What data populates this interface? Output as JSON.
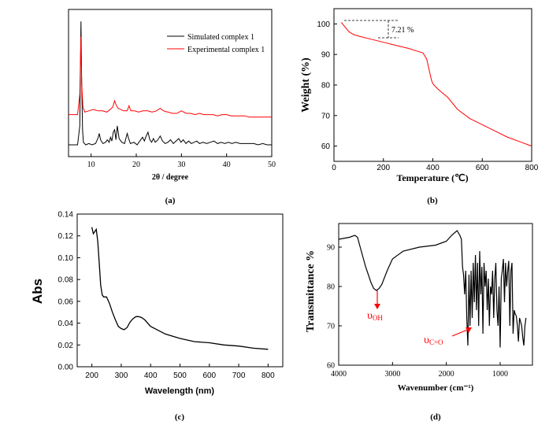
{
  "chart_data": [
    {
      "panel": "(a)",
      "type": "line",
      "xlabel": "2θ / degree",
      "ylabel": "",
      "xlim": [
        5,
        50
      ],
      "xticks": [
        10,
        20,
        30,
        40,
        50
      ],
      "yticks": [],
      "legend": "top-right",
      "series": [
        {
          "name": "Simulated complex 1",
          "color": "#000000",
          "x": [
            5.0,
            7.0,
            7.5,
            7.75,
            7.9,
            8.1,
            8.3,
            8.8,
            9.5,
            10.2,
            11.0,
            11.6,
            11.8,
            12.1,
            12.6,
            13.2,
            13.6,
            14.0,
            14.3,
            14.6,
            14.9,
            15.2,
            15.5,
            15.8,
            16.2,
            16.8,
            17.4,
            18.0,
            18.3,
            18.7,
            19.5,
            20.2,
            21.0,
            21.4,
            21.8,
            22.2,
            22.6,
            23.0,
            23.4,
            23.8,
            24.2,
            24.8,
            25.3,
            25.8,
            26.4,
            27.0,
            27.6,
            28.2,
            28.8,
            29.4,
            29.9,
            30.4,
            31.0,
            31.6,
            32.2,
            32.8,
            33.4,
            34.0,
            34.8,
            35.6,
            36.4,
            37.2,
            38.0,
            38.8,
            39.6,
            40.4,
            41.2,
            42.0,
            43.0,
            44.0,
            45.0,
            46.0,
            47.0,
            48.0,
            49.0,
            50.0
          ],
          "values": [
            0.0,
            0.0,
            0.15,
            0.98,
            0.55,
            0.12,
            0.02,
            0.0,
            0.01,
            0.0,
            0.01,
            0.06,
            0.09,
            0.04,
            0.01,
            0.02,
            0.04,
            0.02,
            0.06,
            0.03,
            0.1,
            0.12,
            0.04,
            0.15,
            0.05,
            0.02,
            0.01,
            0.09,
            0.05,
            0.01,
            0.02,
            0.0,
            0.04,
            0.06,
            0.03,
            0.07,
            0.1,
            0.04,
            0.02,
            0.05,
            0.02,
            0.04,
            0.07,
            0.03,
            0.01,
            0.02,
            0.04,
            0.01,
            0.03,
            0.05,
            0.02,
            0.04,
            0.01,
            0.03,
            0.01,
            0.02,
            0.03,
            0.01,
            0.02,
            0.01,
            0.02,
            0.03,
            0.01,
            0.02,
            0.01,
            0.02,
            0.01,
            0.02,
            0.01,
            0.01,
            0.01,
            0.01,
            0.0,
            0.01,
            0.0,
            0.0
          ]
        },
        {
          "name": "Experimental complex 1",
          "color": "#ff0000",
          "x": [
            5.0,
            7.0,
            7.5,
            7.75,
            7.9,
            8.2,
            8.6,
            9.5,
            10.5,
            11.5,
            12.5,
            13.5,
            14.2,
            14.8,
            15.2,
            15.6,
            16.0,
            16.6,
            17.2,
            18.0,
            18.4,
            18.8,
            19.6,
            20.5,
            21.5,
            22.5,
            23.5,
            24.5,
            25.3,
            26.0,
            27.0,
            28.0,
            29.0,
            30.0,
            31.0,
            32.0,
            33.0,
            34.0,
            35.0,
            36.0,
            37.0,
            38.0,
            39.0,
            40.0,
            41.0,
            42.0,
            43.0,
            44.0,
            45.0,
            46.0,
            47.0,
            48.0,
            49.0,
            50.0
          ],
          "values": [
            0.24,
            0.24,
            0.4,
            0.86,
            0.5,
            0.3,
            0.26,
            0.27,
            0.28,
            0.27,
            0.27,
            0.26,
            0.28,
            0.3,
            0.35,
            0.31,
            0.29,
            0.28,
            0.27,
            0.27,
            0.31,
            0.27,
            0.27,
            0.26,
            0.27,
            0.27,
            0.26,
            0.27,
            0.29,
            0.27,
            0.26,
            0.25,
            0.25,
            0.27,
            0.25,
            0.25,
            0.24,
            0.25,
            0.24,
            0.24,
            0.24,
            0.23,
            0.24,
            0.24,
            0.23,
            0.23,
            0.23,
            0.23,
            0.22,
            0.22,
            0.22,
            0.22,
            0.22,
            0.22
          ]
        }
      ]
    },
    {
      "panel": "(b)",
      "type": "line",
      "xlabel": "Temperature (℃)",
      "ylabel": "Weight (%)",
      "xlim": [
        0,
        800
      ],
      "ylim": [
        55,
        105
      ],
      "xticks": [
        0,
        200,
        400,
        600,
        800
      ],
      "yticks": [
        60,
        70,
        80,
        90,
        100
      ],
      "annotation": "7.21 %",
      "series": [
        {
          "name": "",
          "color": "#ff0000",
          "x": [
            30,
            45,
            60,
            80,
            100,
            150,
            200,
            250,
            300,
            340,
            360,
            375,
            385,
            395,
            400,
            410,
            430,
            460,
            500,
            550,
            600,
            650,
            700,
            750,
            800
          ],
          "values": [
            100.5,
            99.0,
            97.5,
            96.5,
            96.0,
            95.0,
            94.0,
            93.0,
            92.0,
            91.0,
            90.5,
            88.5,
            85.0,
            81.5,
            80.5,
            79.5,
            78.0,
            76.0,
            72.0,
            69.0,
            67.0,
            65.0,
            63.0,
            61.5,
            60.0
          ]
        }
      ]
    },
    {
      "panel": "(c)",
      "type": "line",
      "xlabel": "Wavelength (nm)",
      "ylabel": "Abs",
      "xlim": [
        150,
        850
      ],
      "ylim": [
        0.0,
        0.14
      ],
      "xticks": [
        200,
        300,
        400,
        500,
        600,
        700,
        800
      ],
      "yticks": [
        0.0,
        0.02,
        0.04,
        0.06,
        0.08,
        0.1,
        0.12,
        0.14
      ],
      "series": [
        {
          "name": "",
          "color": "#000000",
          "x": [
            200,
            205,
            210,
            215,
            220,
            225,
            230,
            235,
            240,
            250,
            260,
            270,
            280,
            290,
            300,
            310,
            320,
            330,
            340,
            350,
            360,
            370,
            380,
            400,
            450,
            500,
            550,
            600,
            650,
            700,
            750,
            800
          ],
          "values": [
            0.128,
            0.122,
            0.124,
            0.126,
            0.115,
            0.095,
            0.075,
            0.066,
            0.064,
            0.064,
            0.058,
            0.05,
            0.043,
            0.037,
            0.035,
            0.034,
            0.036,
            0.041,
            0.044,
            0.046,
            0.046,
            0.045,
            0.043,
            0.037,
            0.03,
            0.026,
            0.023,
            0.022,
            0.02,
            0.019,
            0.017,
            0.016
          ]
        }
      ]
    },
    {
      "panel": "(d)",
      "type": "line",
      "xlabel": "Wavenumber (cm⁻¹)",
      "ylabel": "Transmittance %",
      "xlim": [
        4000,
        400
      ],
      "ylim": [
        60,
        96
      ],
      "xticks": [
        4000,
        3000,
        2000,
        1000
      ],
      "yticks": [
        60,
        70,
        80,
        90
      ],
      "annotations": [
        {
          "text": "υOH",
          "x": 3300
        },
        {
          "text": "υC=O",
          "x": 1600
        }
      ],
      "series": [
        {
          "name": "",
          "color": "#000000",
          "x": [
            4000,
            3800,
            3700,
            3650,
            3600,
            3500,
            3400,
            3350,
            3300,
            3250,
            3200,
            3100,
            3000,
            2800,
            2500,
            2200,
            2000,
            1900,
            1800,
            1750,
            1720,
            1700,
            1680,
            1660,
            1640,
            1620,
            1600,
            1590,
            1580,
            1560,
            1540,
            1520,
            1500,
            1480,
            1460,
            1440,
            1420,
            1400,
            1380,
            1360,
            1340,
            1320,
            1300,
            1280,
            1260,
            1240,
            1220,
            1200,
            1180,
            1160,
            1140,
            1120,
            1100,
            1080,
            1060,
            1040,
            1020,
            1000,
            980,
            960,
            940,
            920,
            900,
            880,
            860,
            840,
            820,
            800,
            780,
            760,
            740,
            720,
            700,
            680,
            660,
            640,
            620,
            600,
            580,
            560,
            540,
            520
          ],
          "values": [
            92.0,
            92.5,
            93.0,
            92.5,
            90.0,
            85.0,
            81.0,
            79.5,
            79.0,
            79.5,
            80.5,
            84.0,
            87.0,
            89.0,
            90.0,
            90.5,
            91.5,
            93.0,
            94.2,
            93.0,
            92.0,
            85.0,
            83.0,
            78.0,
            84.0,
            72.0,
            65.0,
            74.0,
            83.0,
            70.0,
            84.0,
            72.0,
            86.0,
            76.0,
            88.0,
            74.0,
            86.0,
            70.0,
            89.0,
            78.0,
            85.0,
            68.0,
            86.0,
            80.0,
            84.0,
            74.0,
            82.0,
            70.0,
            80.0,
            78.0,
            84.0,
            72.0,
            82.0,
            86.0,
            74.0,
            70.0,
            80.0,
            64.5,
            82.0,
            84.0,
            87.0,
            76.0,
            86.0,
            80.0,
            84.0,
            86.5,
            70.0,
            84.0,
            86.0,
            68.0,
            74.0,
            73.0,
            72.5,
            70.0,
            66.0,
            72.0,
            71.0,
            70.0,
            67.0,
            65.0,
            70.0,
            72.0
          ]
        }
      ]
    }
  ]
}
